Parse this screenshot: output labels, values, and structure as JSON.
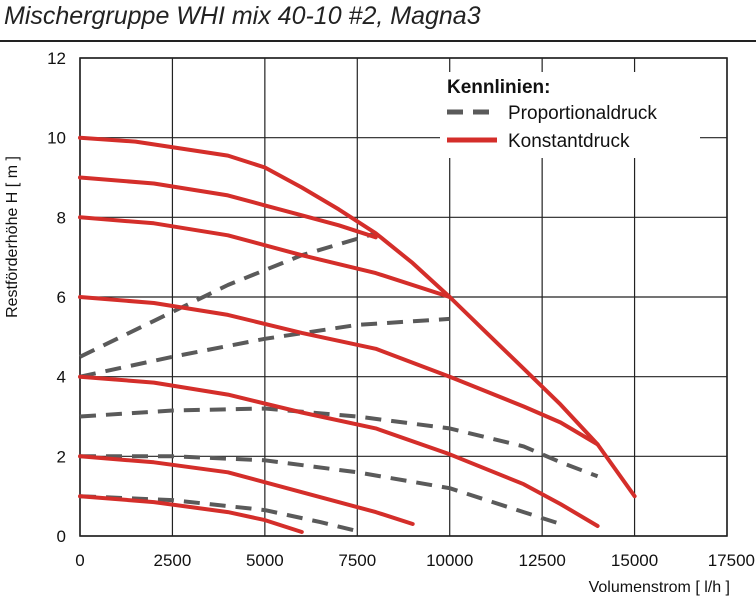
{
  "title": "Mischergruppe WHI mix 40-10 #2, Magna3",
  "colors": {
    "konstant": "#d42e2a",
    "proportional": "#5a5a5a",
    "grid": "#222222"
  },
  "chart_data": {
    "type": "line",
    "xlabel": "Volumenstrom [ l/h ]",
    "ylabel": "Restförderhöhe H [ m ]",
    "xlim": [
      0,
      17500
    ],
    "ylim": [
      0,
      12
    ],
    "xticks": [
      "0",
      "2500",
      "5000",
      "7500",
      "10000",
      "12500",
      "15000",
      "17500"
    ],
    "yticks": [
      "0",
      "2",
      "4",
      "6",
      "8",
      "10",
      "12"
    ],
    "grid": true,
    "legend": {
      "position": "top-right",
      "title": "Kennlinien:",
      "entries": [
        {
          "label": "Proportionaldruck",
          "style": "dashed"
        },
        {
          "label": "Konstantdruck",
          "style": "solid"
        }
      ]
    },
    "series": [
      {
        "kind": "Konstantdruck",
        "points": [
          [
            0,
            10
          ],
          [
            1500,
            9.9
          ],
          [
            4000,
            9.55
          ],
          [
            5000,
            9.25
          ],
          [
            6000,
            8.75
          ],
          [
            7000,
            8.2
          ],
          [
            8000,
            7.6
          ],
          [
            9000,
            6.85
          ],
          [
            10000,
            6.0
          ],
          [
            11000,
            5.1
          ],
          [
            12000,
            4.2
          ],
          [
            13000,
            3.3
          ],
          [
            14000,
            2.3
          ],
          [
            15000,
            1.0
          ]
        ]
      },
      {
        "kind": "Konstantdruck",
        "points": [
          [
            0,
            9
          ],
          [
            2000,
            8.85
          ],
          [
            4000,
            8.55
          ],
          [
            5000,
            8.3
          ],
          [
            6000,
            8.05
          ],
          [
            7000,
            7.8
          ],
          [
            8000,
            7.5
          ]
        ]
      },
      {
        "kind": "Konstantdruck",
        "points": [
          [
            0,
            8
          ],
          [
            2000,
            7.85
          ],
          [
            4000,
            7.55
          ],
          [
            6000,
            7.05
          ],
          [
            8000,
            6.6
          ],
          [
            10000,
            6.0
          ]
        ]
      },
      {
        "kind": "Konstantdruck",
        "points": [
          [
            0,
            6
          ],
          [
            2000,
            5.85
          ],
          [
            4000,
            5.55
          ],
          [
            6000,
            5.1
          ],
          [
            8000,
            4.7
          ],
          [
            10000,
            4.0
          ],
          [
            12000,
            3.25
          ],
          [
            13000,
            2.85
          ],
          [
            14000,
            2.3
          ]
        ]
      },
      {
        "kind": "Konstantdruck",
        "points": [
          [
            0,
            4
          ],
          [
            2000,
            3.85
          ],
          [
            4000,
            3.55
          ],
          [
            6000,
            3.1
          ],
          [
            8000,
            2.7
          ],
          [
            10000,
            2.05
          ],
          [
            12000,
            1.3
          ],
          [
            13000,
            0.8
          ],
          [
            14000,
            0.25
          ]
        ]
      },
      {
        "kind": "Konstantdruck",
        "points": [
          [
            0,
            2
          ],
          [
            2000,
            1.85
          ],
          [
            4000,
            1.6
          ],
          [
            6000,
            1.1
          ],
          [
            8000,
            0.6
          ],
          [
            9000,
            0.3
          ]
        ]
      },
      {
        "kind": "Konstantdruck",
        "points": [
          [
            0,
            1
          ],
          [
            2000,
            0.85
          ],
          [
            4000,
            0.6
          ],
          [
            5000,
            0.4
          ],
          [
            6000,
            0.1
          ]
        ]
      },
      {
        "kind": "Proportionaldruck",
        "points": [
          [
            0,
            4.5
          ],
          [
            2000,
            5.4
          ],
          [
            4000,
            6.3
          ],
          [
            6000,
            7.05
          ],
          [
            8000,
            7.6
          ]
        ]
      },
      {
        "kind": "Proportionaldruck",
        "points": [
          [
            0,
            4
          ],
          [
            2500,
            4.5
          ],
          [
            5000,
            4.95
          ],
          [
            7500,
            5.3
          ],
          [
            10000,
            5.45
          ]
        ]
      },
      {
        "kind": "Proportionaldruck",
        "points": [
          [
            0,
            3
          ],
          [
            2500,
            3.15
          ],
          [
            5000,
            3.2
          ],
          [
            7500,
            3.0
          ],
          [
            10000,
            2.7
          ],
          [
            12000,
            2.25
          ],
          [
            13000,
            1.85
          ],
          [
            14000,
            1.5
          ]
        ]
      },
      {
        "kind": "Proportionaldruck",
        "points": [
          [
            0,
            2
          ],
          [
            2500,
            2.0
          ],
          [
            5000,
            1.9
          ],
          [
            7500,
            1.6
          ],
          [
            10000,
            1.2
          ],
          [
            12000,
            0.6
          ],
          [
            13000,
            0.3
          ]
        ]
      },
      {
        "kind": "Proportionaldruck",
        "points": [
          [
            0,
            1
          ],
          [
            2500,
            0.9
          ],
          [
            5000,
            0.65
          ],
          [
            6500,
            0.35
          ],
          [
            7600,
            0.1
          ]
        ]
      }
    ]
  }
}
